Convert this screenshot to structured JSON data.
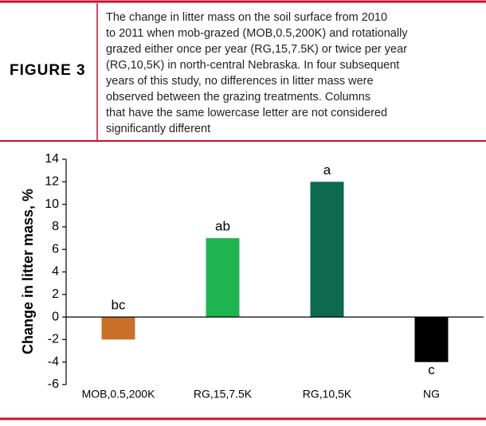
{
  "header": {
    "label": "FIGURE 3",
    "caption_lines": [
      "The change in litter mass on the soil surface from 2010",
      "to 2011 when mob-grazed (MOB,0.5,200K) and rotationally",
      "grazed either once per year (RG,15,7.5K) or twice per year",
      "(RG,10,5K) in north-central Nebraska. In four subsequent",
      "years of this study, no differences in litter mass were",
      "observed between the grazing treatments. Columns",
      "that have the same lowercase letter are not considered",
      "significantly different"
    ]
  },
  "chart_data": {
    "type": "bar",
    "y_label": "Change in litter mass, %",
    "categories": [
      "MOB,0.5,200K",
      "RG,15,7.5K",
      "RG,10,5K",
      "NG"
    ],
    "values": [
      -2,
      7,
      12,
      -4
    ],
    "colors": [
      "#c8702a",
      "#1fb450",
      "#0e6a4f",
      "#000000"
    ],
    "annotations": [
      "bc",
      "ab",
      "a",
      "c"
    ],
    "ylim": [
      -6,
      14
    ],
    "yticks": [
      -6,
      -4,
      -2,
      0,
      2,
      4,
      6,
      8,
      10,
      12,
      14
    ],
    "grid": false
  }
}
